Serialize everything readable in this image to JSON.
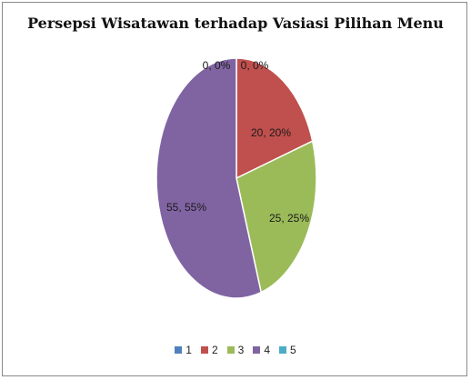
{
  "chart_data": {
    "type": "pie",
    "title": "Persepsi Wisatawan terhadap Vasiasi Pilihan Menu",
    "categories": [
      "1",
      "2",
      "3",
      "4",
      "5"
    ],
    "values": [
      0,
      20,
      25,
      55,
      0
    ],
    "data_labels": [
      "0, 0%",
      "20, 20%",
      "25, 25%",
      "55, 55%",
      "0, 0%"
    ],
    "colors": [
      "#4F81BD",
      "#C0504D",
      "#9BBB59",
      "#8064A2",
      "#4BACC6"
    ],
    "legend_position": "bottom"
  }
}
